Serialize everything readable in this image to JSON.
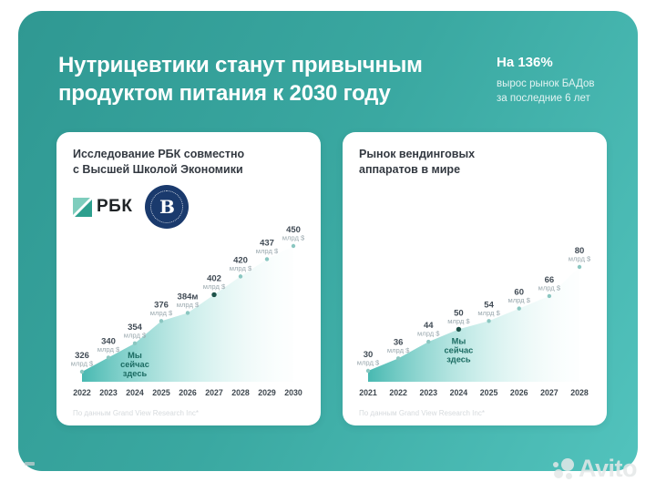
{
  "theme": {
    "panel_gradient": [
      "#2F9892",
      "#52C3BD"
    ],
    "card_bg": "#FFFFFF",
    "area_gradient": [
      "#3EB5AD",
      "#9ADDD7",
      "#EFFBFA"
    ],
    "dot": "#8BC7C1",
    "dot_current": "#1D5249",
    "annotation_color": "#1B6B62",
    "rbc_green": "#2D9F8E",
    "rbc_light_green": "#7ECDBD",
    "hse_navy": "#1A3A6D"
  },
  "slide": {
    "title_line1": "Нутрицевтики станут привычным",
    "title_line2": "продуктом питания к 2030 году",
    "stat_value": "На 136%",
    "stat_desc_line1": "вырос рынок БАДов",
    "stat_desc_line2": "за последние 6 лет",
    "watermark": "Avito"
  },
  "logos": {
    "rbc": "РБК",
    "hse_glyph": "В"
  },
  "chart_data": [
    {
      "type": "area",
      "title": "Исследование РБК совместно с Высшей Школой Экономики",
      "title_lines": [
        "Исследование РБК совместно",
        "с Высшей Школой Экономики"
      ],
      "categories": [
        "2022",
        "2023",
        "2024",
        "2025",
        "2026",
        "2027",
        "2028",
        "2029",
        "2030"
      ],
      "values": [
        326,
        340,
        354,
        376,
        384,
        402,
        420,
        437,
        450
      ],
      "value_labels": [
        "326",
        "340",
        "354",
        "376",
        "384м",
        "402",
        "420",
        "437",
        "450"
      ],
      "unit": "млрд $",
      "xlabel": "",
      "ylabel": "",
      "grid": false,
      "legend": false,
      "current_index": 5,
      "annotation": "Мы сейчас здесь",
      "annotation_index": 2,
      "source": "По данным Grand View Research Inc*",
      "rise_range": [
        11,
        149
      ]
    },
    {
      "type": "area",
      "title": "Рынок вендинговых аппаратов в мире",
      "title_lines": [
        "Рынок вендинговых",
        "аппаратов в мире"
      ],
      "categories": [
        "2021",
        "2022",
        "2023",
        "2024",
        "2025",
        "2026",
        "2027",
        "2028"
      ],
      "values": [
        30,
        36,
        44,
        50,
        54,
        60,
        66,
        80
      ],
      "value_labels": [
        "30",
        "36",
        "44",
        "50",
        "54",
        "60",
        "66",
        "80"
      ],
      "unit": "млрд $",
      "xlabel": "",
      "ylabel": "",
      "grid": false,
      "legend": false,
      "current_index": 3,
      "annotation": "Мы сейчас здесь",
      "annotation_index": 3,
      "source": "По данным Grand View Research Inc*",
      "rise_range": [
        12,
        126
      ]
    }
  ]
}
